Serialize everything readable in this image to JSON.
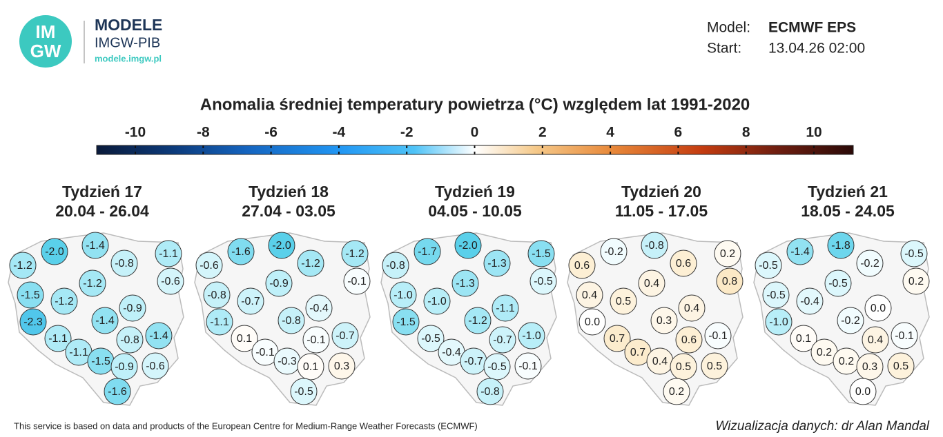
{
  "header": {
    "logo_top": "IM",
    "logo_bottom": "GW",
    "brand": "MODELE",
    "org": "IMGW-PIB",
    "url": "modele.imgw.pl",
    "model_label": "Model:",
    "model": "ECMWF EPS",
    "start_label": "Start:",
    "start": "13.04.26 02:00"
  },
  "title": "Anomalia średniej temperatury powietrza (°C) względem lat 1991-2020",
  "colorbar": {
    "ticks": [
      -10,
      -8,
      -6,
      -4,
      -2,
      0,
      2,
      4,
      6,
      8,
      10
    ]
  },
  "maps": [
    {
      "title": "Tydzień 17",
      "dates": "20.04 - 26.04",
      "values": [
        -2,
        -1.4,
        -1.1,
        -1.2,
        -0.8,
        -0.6,
        -1.2,
        -1.5,
        -1.2,
        -0.9,
        -2.3,
        -1.4,
        -1.4,
        -1.1,
        -0.8,
        -1.1,
        -1.5,
        -0.9,
        -0.6,
        -1.6
      ],
      "value_labels": [
        "-2.0",
        "-1.4",
        "-1.1",
        "-1.2",
        "-0.8",
        "-0.6",
        "-1.2",
        "-1.5",
        "-1.2",
        "-0.9",
        "-2.3",
        "-1.4",
        "-1.4",
        "-1.1",
        "-0.8",
        "-1.1",
        "-1.5",
        "-0.9",
        "-0.6",
        "-1.6"
      ]
    },
    {
      "title": "Tydzień 18",
      "dates": "27.04 - 03.05",
      "values": [
        -1.6,
        -2,
        -1.2,
        -0.6,
        -1.2,
        -0.1,
        -0.9,
        -0.8,
        -0.7,
        -0.4,
        -1.1,
        -0.8,
        -0.7,
        0.1,
        -0.1,
        -0.1,
        -0.3,
        0.1,
        0.3,
        -0.5
      ],
      "value_labels": [
        "-1.6",
        "-2.0",
        "-1.2",
        "-0.6",
        "-1.2",
        "-0.1",
        "-0.9",
        "-0.8",
        "-0.7",
        "-0.4",
        "-1.1",
        "-0.8",
        "-0.7",
        "0.1",
        "-0.1",
        "-0.1",
        "-0.3",
        "0.1",
        "0.3",
        "-0.5"
      ]
    },
    {
      "title": "Tydzień 19",
      "dates": "04.05 - 10.05",
      "values": [
        -1.7,
        -2,
        -1.5,
        -0.8,
        -1.3,
        -0.5,
        -1.3,
        -1,
        -1,
        -1.1,
        -1.5,
        -1.2,
        -1,
        -0.5,
        -0.7,
        -0.4,
        -0.7,
        -0.5,
        -0.1,
        -0.8
      ],
      "value_labels": [
        "-1.7",
        "-2.0",
        "-1.5",
        "-0.8",
        "-1.3",
        "-0.5",
        "-1.3",
        "-1.0",
        "-1.0",
        "-1.1",
        "-1.5",
        "-1.2",
        "-1.0",
        "-0.5",
        "-0.7",
        "-0.4",
        "-0.7",
        "-0.5",
        "-0.1",
        "-0.8"
      ]
    },
    {
      "title": "Tydzień 20",
      "dates": "11.05 - 17.05",
      "values": [
        -0.2,
        -0.8,
        0.2,
        0.6,
        0.6,
        0.8,
        0.4,
        0.4,
        0.5,
        0.4,
        0,
        0.3,
        -0.1,
        0.7,
        0.6,
        0.7,
        0.4,
        0.5,
        0.5,
        0.2
      ],
      "value_labels": [
        "-0.2",
        "-0.8",
        "0.2",
        "0.6",
        "0.6",
        "0.8",
        "0.4",
        "0.4",
        "0.5",
        "0.4",
        "0.0",
        "0.3",
        "-0.1",
        "0.7",
        "0.6",
        "0.7",
        "0.4",
        "0.5",
        "0.5",
        "0.2"
      ]
    },
    {
      "title": "Tydzień 21",
      "dates": "18.05 - 24.05",
      "values": [
        -1.4,
        -1.8,
        -0.5,
        -0.5,
        -0.2,
        0.2,
        -0.5,
        -0.5,
        -0.4,
        0,
        -1,
        -0.2,
        -0.1,
        0.1,
        0.4,
        0.2,
        0.2,
        0.3,
        0.5,
        0
      ],
      "value_labels": [
        "-1.4",
        "-1.8",
        "-0.5",
        "-0.5",
        "-0.2",
        "0.2",
        "-0.5",
        "-0.5",
        "-0.4",
        "0.0",
        "-1.0",
        "-0.2",
        "-0.1",
        "0.1",
        "0.4",
        "0.2",
        "0.2",
        "0.3",
        "0.5",
        "0.0"
      ]
    }
  ],
  "footer": {
    "source": "This service is based on data and products of the European Centre for Medium-Range Weather Forecasts (ECMWF)",
    "credit": "Wizualizacja danych: dr Alan Mandal"
  }
}
